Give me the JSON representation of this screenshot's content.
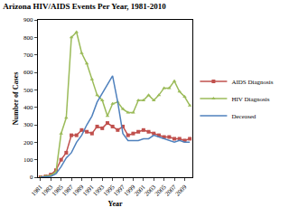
{
  "chart_data": {
    "type": "line",
    "title": "Arizona HIV/AIDS Events Per Year, 1981-2010",
    "x_label": "Year",
    "y_label": "Number of Cases",
    "x": [
      1981,
      1982,
      1983,
      1984,
      1985,
      1986,
      1987,
      1988,
      1989,
      1990,
      1991,
      1992,
      1993,
      1994,
      1995,
      1996,
      1997,
      1998,
      1999,
      2000,
      2001,
      2002,
      2003,
      2004,
      2005,
      2006,
      2007,
      2008,
      2009,
      2010
    ],
    "series": [
      {
        "name": "AIDS Diagnosis",
        "color": "#c0504d",
        "marker": "square",
        "line_style": "solid",
        "values": [
          0,
          5,
          15,
          40,
          100,
          140,
          240,
          240,
          270,
          260,
          250,
          290,
          280,
          310,
          290,
          270,
          290,
          240,
          250,
          260,
          270,
          260,
          250,
          240,
          230,
          230,
          220,
          220,
          210,
          220
        ]
      },
      {
        "name": "HIV Diagnosis",
        "color": "#9bbb59",
        "marker": "triangle",
        "line_style": "solid",
        "values": [
          0,
          5,
          10,
          30,
          250,
          340,
          800,
          830,
          710,
          650,
          560,
          470,
          440,
          350,
          420,
          430,
          390,
          370,
          370,
          440,
          440,
          470,
          440,
          470,
          510,
          510,
          550,
          490,
          460,
          410
        ]
      },
      {
        "name": "Deceased",
        "color": "#4f81bd",
        "marker": "none",
        "line_style": "solid",
        "values": [
          0,
          2,
          5,
          20,
          60,
          110,
          140,
          200,
          240,
          300,
          350,
          430,
          480,
          530,
          580,
          430,
          250,
          210,
          210,
          210,
          220,
          220,
          240,
          230,
          220,
          210,
          200,
          210,
          200,
          200
        ]
      }
    ],
    "xlim": [
      1980.5,
      2010.5
    ],
    "xticks": [
      1981,
      1983,
      1985,
      1987,
      1989,
      1991,
      1993,
      1995,
      1997,
      1999,
      2001,
      2003,
      2005,
      2007,
      2009
    ],
    "ylim": [
      0,
      900
    ],
    "yticks": [
      0,
      100,
      200,
      300,
      400,
      500,
      600,
      700,
      800,
      900
    ],
    "grid": false,
    "legend": "right"
  }
}
